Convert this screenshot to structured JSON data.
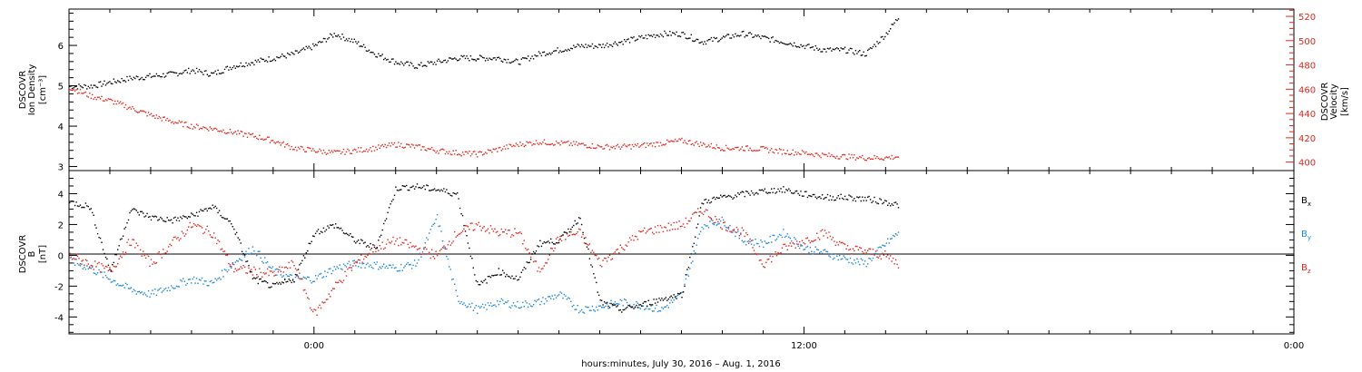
{
  "colors": {
    "axis": "#000000",
    "red": "#e4241b",
    "blue": "#1a86d8",
    "black": "#000000"
  },
  "footer": {
    "xlabel": "hours:minutes, July 30, 2016 – Aug.  1, 2016"
  },
  "x_axis": {
    "range_hours": [
      -6,
      24
    ],
    "major_ticks_hours": [
      0,
      12,
      24
    ],
    "major_tick_labels": [
      "0:00",
      "12:00",
      "0:00"
    ],
    "minor_tick_step_hours": 1,
    "data_end_hours": 14.3
  },
  "chart_data": [
    {
      "type": "scatter",
      "panel": "top",
      "ylabel_left": [
        "DSCOVR",
        "Ion Density",
        "[cm⁻³]"
      ],
      "ylabel_right": [
        "DSCOVR",
        "Velocity",
        "[km/s]"
      ],
      "y_left": {
        "range": [
          2.9,
          6.9
        ],
        "ticks": [
          3,
          4,
          5,
          6
        ]
      },
      "y_right": {
        "range": [
          393,
          526
        ],
        "ticks": [
          400,
          420,
          440,
          460,
          480,
          500,
          520
        ]
      },
      "grid": false,
      "series": [
        {
          "key": "density",
          "axis": "left",
          "color": "#000000",
          "x_hours": [
            -6.0,
            -5.5,
            -5.0,
            -4.5,
            -4.0,
            -3.5,
            -3.0,
            -2.5,
            -2.0,
            -1.5,
            -1.0,
            -0.5,
            0.0,
            0.5,
            1.0,
            1.5,
            2.0,
            2.5,
            3.0,
            3.5,
            4.0,
            4.5,
            5.0,
            5.5,
            6.0,
            6.5,
            7.0,
            7.5,
            8.0,
            8.5,
            9.0,
            9.5,
            10.0,
            10.5,
            11.0,
            11.5,
            12.0,
            12.5,
            13.0,
            13.5,
            14.0,
            14.3
          ],
          "values": [
            5.0,
            5.0,
            5.1,
            5.2,
            5.25,
            5.3,
            5.4,
            5.3,
            5.5,
            5.6,
            5.7,
            5.8,
            6.0,
            6.3,
            6.1,
            5.8,
            5.6,
            5.5,
            5.6,
            5.7,
            5.7,
            5.7,
            5.6,
            5.8,
            5.9,
            6.0,
            6.0,
            6.1,
            6.2,
            6.3,
            6.3,
            6.1,
            6.2,
            6.3,
            6.2,
            6.1,
            6.0,
            5.9,
            5.9,
            5.8,
            6.3,
            6.7
          ]
        },
        {
          "key": "velocity",
          "axis": "right",
          "color": "#e4241b",
          "x_hours": [
            -6.0,
            -5.5,
            -5.0,
            -4.5,
            -4.0,
            -3.5,
            -3.0,
            -2.5,
            -2.0,
            -1.5,
            -1.0,
            -0.5,
            0.0,
            0.5,
            1.0,
            1.5,
            2.0,
            2.5,
            3.0,
            3.5,
            4.0,
            4.5,
            5.0,
            5.5,
            6.0,
            6.5,
            7.0,
            7.5,
            8.0,
            8.5,
            9.0,
            9.5,
            10.0,
            10.5,
            11.0,
            11.5,
            12.0,
            12.5,
            13.0,
            13.5,
            14.0,
            14.3
          ],
          "values": [
            462,
            455,
            451,
            445,
            439,
            434,
            430,
            428,
            425,
            422,
            418,
            412,
            410,
            408,
            410,
            412,
            415,
            413,
            410,
            408,
            407,
            411,
            415,
            417,
            416,
            415,
            413,
            413,
            414,
            416,
            418,
            415,
            412,
            412,
            411,
            409,
            408,
            406,
            405,
            404,
            404,
            405
          ]
        }
      ]
    },
    {
      "type": "scatter",
      "panel": "bottom",
      "ylabel_left": [
        "DSCOVR",
        "B",
        "[nT]"
      ],
      "y_left": {
        "range": [
          -5.1,
          5.5
        ],
        "ticks": [
          -4,
          -2,
          0,
          2,
          4
        ]
      },
      "zero_line": true,
      "grid": false,
      "series": [
        {
          "name": "Bx",
          "label_main": "B",
          "label_sub": "x",
          "color": "#000000",
          "x_hours": [
            -6.0,
            -5.5,
            -5.0,
            -4.5,
            -4.0,
            -3.5,
            -3.0,
            -2.5,
            -2.0,
            -1.5,
            -1.0,
            -0.5,
            0.0,
            0.5,
            1.0,
            1.5,
            2.0,
            2.5,
            3.0,
            3.5,
            4.0,
            4.5,
            5.0,
            5.5,
            6.0,
            6.5,
            7.0,
            7.5,
            8.0,
            8.5,
            9.0,
            9.5,
            10.0,
            10.5,
            11.0,
            11.5,
            12.0,
            12.5,
            13.0,
            13.5,
            14.0,
            14.3
          ],
          "values": [
            3.5,
            3.2,
            -1.0,
            3.0,
            2.5,
            2.3,
            2.6,
            3.2,
            2.0,
            -1.5,
            -2.0,
            -1.5,
            1.5,
            2.0,
            1.0,
            0.5,
            4.4,
            4.5,
            4.3,
            4.0,
            -2.0,
            -1.0,
            -1.5,
            0.8,
            1.0,
            2.5,
            -3.0,
            -3.5,
            -3.2,
            -2.8,
            -2.5,
            3.5,
            3.8,
            4.0,
            4.2,
            4.3,
            4.0,
            3.8,
            3.8,
            3.7,
            3.5,
            3.3
          ]
        },
        {
          "name": "By",
          "label_main": "B",
          "label_sub": "y",
          "color": "#1a86d8",
          "x_hours": [
            -6.0,
            -5.5,
            -5.0,
            -4.5,
            -4.0,
            -3.5,
            -3.0,
            -2.5,
            -2.0,
            -1.5,
            -1.0,
            -0.5,
            0.0,
            0.5,
            1.0,
            1.5,
            2.0,
            2.5,
            3.0,
            3.5,
            4.0,
            4.5,
            5.0,
            5.5,
            6.0,
            6.5,
            7.0,
            7.5,
            8.0,
            8.5,
            9.0,
            9.5,
            10.0,
            10.5,
            11.0,
            11.5,
            12.0,
            12.5,
            13.0,
            13.5,
            14.0,
            14.3
          ],
          "values": [
            -0.3,
            -0.8,
            -1.5,
            -2.2,
            -2.5,
            -2.0,
            -1.5,
            -1.8,
            -0.5,
            0.5,
            -1.0,
            -1.5,
            -1.5,
            -0.8,
            -0.5,
            -0.6,
            -0.8,
            -0.5,
            2.5,
            -2.8,
            -3.5,
            -3.0,
            -3.2,
            -3.0,
            -2.5,
            -3.5,
            -3.3,
            -3.0,
            -3.2,
            -3.5,
            -2.5,
            2.0,
            2.3,
            1.0,
            0.8,
            1.5,
            0.5,
            0.2,
            -0.2,
            -0.5,
            0.8,
            1.5
          ]
        },
        {
          "name": "Bz",
          "label_main": "B",
          "label_sub": "z",
          "color": "#e4241b",
          "x_hours": [
            -6.0,
            -5.5,
            -5.0,
            -4.5,
            -4.0,
            -3.5,
            -3.0,
            -2.5,
            -2.0,
            -1.5,
            -1.0,
            -0.5,
            0.0,
            0.5,
            1.0,
            1.5,
            2.0,
            2.5,
            3.0,
            3.5,
            4.0,
            4.5,
            5.0,
            5.5,
            6.0,
            6.5,
            7.0,
            7.5,
            8.0,
            8.5,
            9.0,
            9.5,
            10.0,
            10.5,
            11.0,
            11.5,
            12.0,
            12.5,
            13.0,
            13.5,
            14.0,
            14.3
          ],
          "values": [
            0.0,
            -0.5,
            -1.0,
            1.0,
            -0.5,
            0.8,
            2.0,
            1.5,
            -0.8,
            -1.0,
            -1.2,
            -0.5,
            -3.8,
            -2.0,
            -0.5,
            0.5,
            1.0,
            0.5,
            0.0,
            1.5,
            2.0,
            1.5,
            1.5,
            -1.0,
            1.2,
            1.5,
            -0.5,
            0.5,
            1.5,
            1.8,
            2.0,
            3.0,
            2.0,
            1.5,
            -0.5,
            0.5,
            1.0,
            1.5,
            0.5,
            0.3,
            0.0,
            -0.5
          ]
        }
      ]
    }
  ]
}
